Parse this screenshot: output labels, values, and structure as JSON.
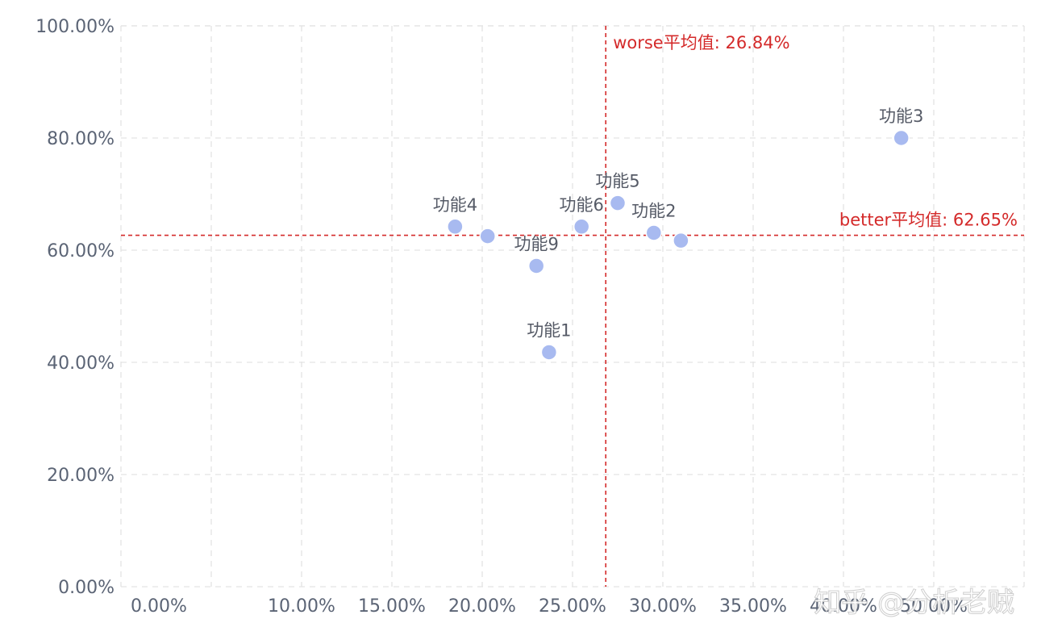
{
  "chart_data": {
    "type": "scatter",
    "title": "",
    "xlabel": "",
    "ylabel": "",
    "x_tick_labels": [
      "0.00%",
      "10.00%",
      "15.00%",
      "20.00%",
      "25.00%",
      "30.00%",
      "35.00%",
      "40.00%",
      "50.00%"
    ],
    "x_tick_values": [
      0,
      10,
      15,
      20,
      25,
      30,
      35,
      40,
      50
    ],
    "y_tick_labels": [
      "0.00%",
      "20.00%",
      "40.00%",
      "60.00%",
      "80.00%",
      "100.00%"
    ],
    "y_tick_values": [
      0,
      20,
      40,
      60,
      80,
      100
    ],
    "xlim": [
      0,
      50
    ],
    "ylim": [
      0,
      100
    ],
    "grid": true,
    "points": [
      {
        "label": "功能4",
        "x": 18.5,
        "y": 64.2
      },
      {
        "label": "",
        "x": 20.3,
        "y": 62.5
      },
      {
        "label": "功能9",
        "x": 23.0,
        "y": 57.2
      },
      {
        "label": "功能1",
        "x": 23.7,
        "y": 41.8
      },
      {
        "label": "功能6",
        "x": 25.5,
        "y": 64.2
      },
      {
        "label": "功能5",
        "x": 27.5,
        "y": 68.4
      },
      {
        "label": "功能2",
        "x": 29.5,
        "y": 63.1
      },
      {
        "label": "",
        "x": 31.0,
        "y": 61.7
      },
      {
        "label": "功能3",
        "x": 43.2,
        "y": 80.0
      }
    ],
    "reference_lines": [
      {
        "axis": "x",
        "value": 26.84,
        "label": "worse平均值: 26.84%"
      },
      {
        "axis": "y",
        "value": 62.65,
        "label": "better平均值: 62.65%"
      }
    ],
    "colors": {
      "point": "#a8baf0",
      "point_stroke": "#ffffff",
      "reference": "#d42a2a",
      "grid": "#e3e3e3",
      "tick_text": "#5b6475",
      "label_text": "#555a66"
    }
  },
  "watermark": "知乎 @分析老贼"
}
